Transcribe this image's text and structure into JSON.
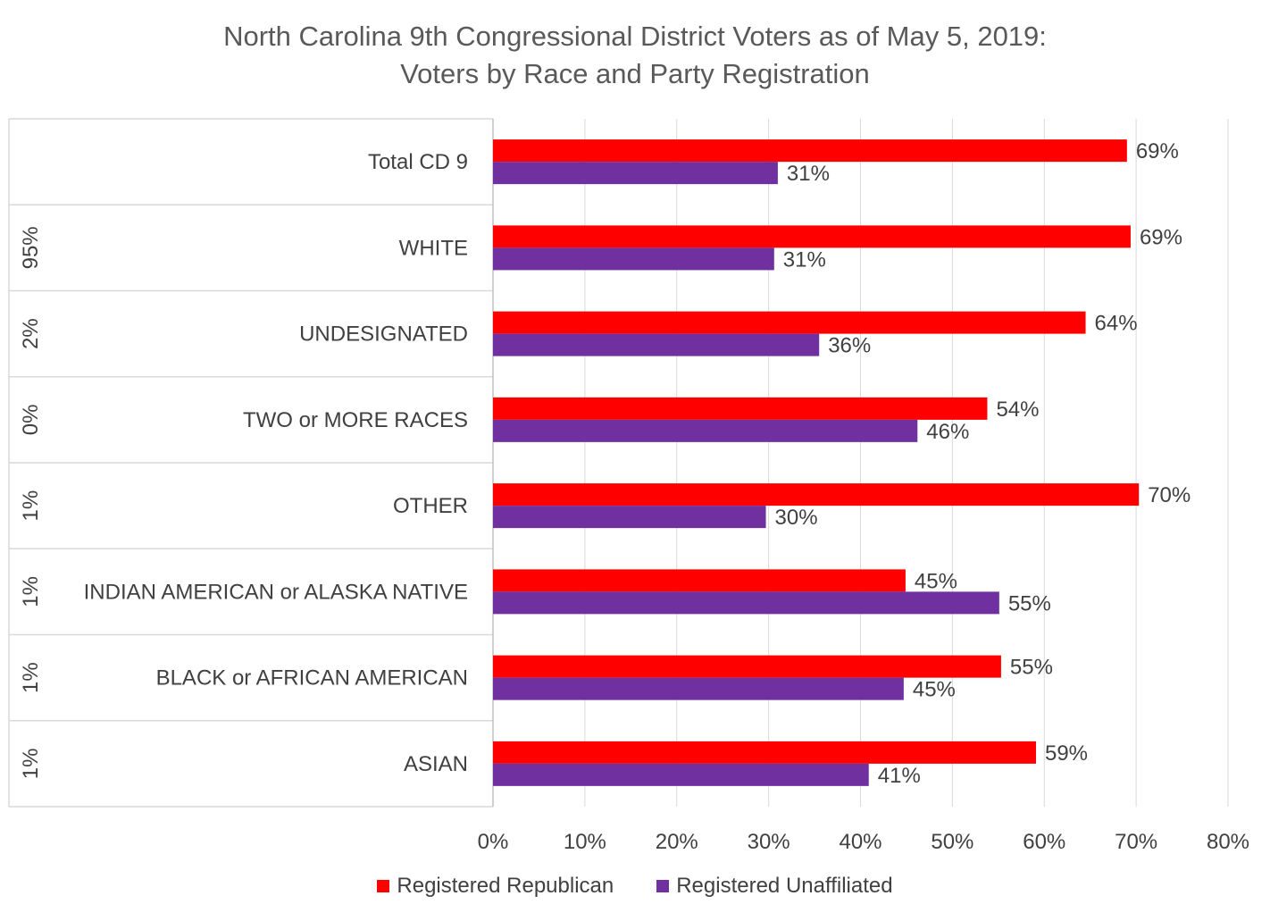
{
  "chart_data": {
    "type": "bar",
    "orientation": "horizontal",
    "title": "North Carolina 9th Congressional District Voters as of May 5, 2019:",
    "subtitle": "Voters by Race and Party Registration",
    "categories": [
      "Total CD 9",
      "WHITE",
      "UNDESIGNATED",
      "TWO or MORE RACES",
      "OTHER",
      "INDIAN AMERICAN or ALASKA NATIVE",
      "BLACK or AFRICAN AMERICAN",
      "ASIAN"
    ],
    "group_labels": [
      "",
      "95%",
      "2%",
      "0%",
      "1%",
      "1%",
      "1%",
      "1%"
    ],
    "series": [
      {
        "name": "Registered Republican",
        "color": "#ff0000",
        "values": [
          69,
          69.4,
          64.5,
          53.8,
          70.3,
          44.9,
          55.3,
          59.1
        ],
        "labels": [
          "69%",
          "69%",
          "64%",
          "54%",
          "70%",
          "45%",
          "55%",
          "59%"
        ]
      },
      {
        "name": "Registered Unaffiliated",
        "color": "#7030a0",
        "values": [
          31,
          30.6,
          35.5,
          46.2,
          29.7,
          55.1,
          44.7,
          40.9
        ],
        "labels": [
          "31%",
          "31%",
          "36%",
          "46%",
          "30%",
          "55%",
          "45%",
          "41%"
        ]
      }
    ],
    "xlim": [
      0,
      80
    ],
    "xticks": [
      "0%",
      "10%",
      "20%",
      "30%",
      "40%",
      "50%",
      "60%",
      "70%",
      "80%"
    ],
    "grid": true,
    "legend": "bottom"
  }
}
